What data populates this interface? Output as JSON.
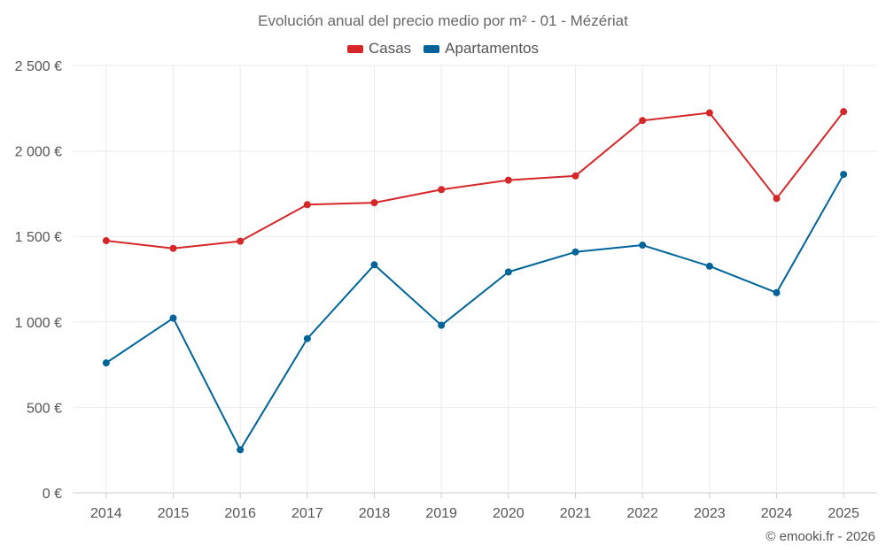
{
  "chart_data": {
    "type": "line",
    "title": "Evolución anual del precio medio por m² - 01 - Mézériat",
    "categories": [
      "2014",
      "2015",
      "2016",
      "2017",
      "2018",
      "2019",
      "2020",
      "2021",
      "2022",
      "2023",
      "2024",
      "2025"
    ],
    "series": [
      {
        "name": "Casas",
        "color": "#d62728",
        "values": [
          1475,
          1430,
          1472,
          1686,
          1697,
          1774,
          1829,
          1854,
          2178,
          2223,
          1722,
          2230
        ]
      },
      {
        "name": "Apartamentos",
        "color": "#00649a",
        "values": [
          760,
          1022,
          252,
          902,
          1334,
          980,
          1292,
          1409,
          1449,
          1326,
          1171,
          1863
        ]
      }
    ],
    "ylim": [
      0,
      2500
    ],
    "yticks": [
      0,
      500,
      1000,
      1500,
      2000,
      2500
    ],
    "ytick_labels": [
      "0 €",
      "500 €",
      "1 000 €",
      "1 500 €",
      "2 000 €",
      "2 500 €"
    ],
    "xlabel": "",
    "ylabel": "",
    "grid": true,
    "legend_position": "top-center"
  },
  "credit": "© emooki.fr - 2026"
}
